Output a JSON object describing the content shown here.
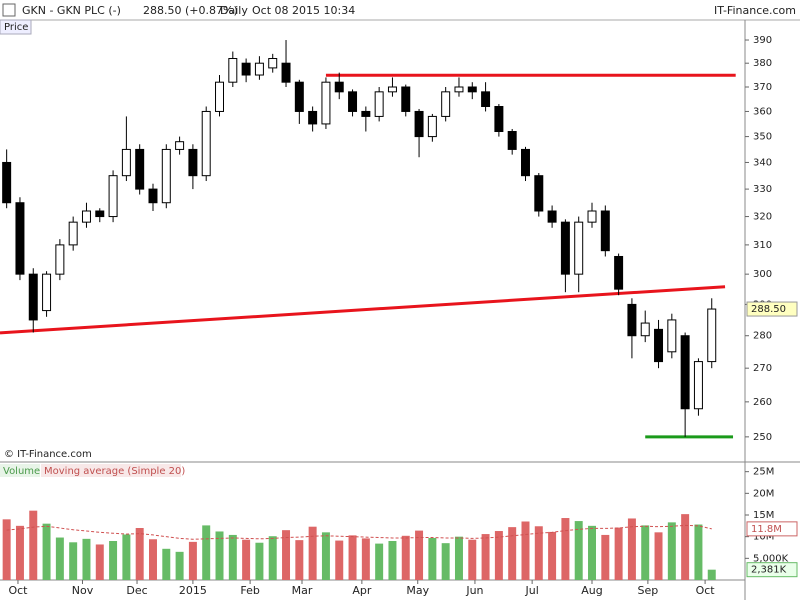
{
  "header": {
    "symbol": "GKN - GKN PLC (-)",
    "quote": "288.50 (+0.87%)",
    "period": "Daily",
    "datetime": "Oct 08 2015 10:34",
    "brand": "IT-Finance.com",
    "copyright": "© IT-Finance.com"
  },
  "chart_data": [
    {
      "type": "candlestick",
      "title": "Price",
      "log_scale": true,
      "up_color": "#ffffff",
      "down_color": "#000000",
      "x": [
        0,
        1,
        2,
        3,
        4,
        5,
        6,
        7,
        8,
        9,
        10,
        11,
        12,
        13,
        14,
        15,
        16,
        17,
        18,
        19,
        20,
        21,
        22,
        23,
        24,
        25,
        26,
        27,
        28,
        29,
        30,
        31,
        32,
        33,
        34,
        35,
        36,
        37,
        38,
        39,
        40,
        41,
        42,
        43,
        44,
        45,
        46,
        47,
        48,
        49,
        50,
        51,
        52,
        53
      ],
      "open": [
        340,
        325,
        300,
        288,
        300,
        310,
        318,
        322,
        320,
        335,
        345,
        330,
        325,
        345,
        345,
        335,
        360,
        372,
        380,
        375,
        378,
        380,
        372,
        360,
        355,
        372,
        368,
        360,
        358,
        368,
        370,
        360,
        350,
        358,
        368,
        370,
        368,
        362,
        352,
        345,
        335,
        322,
        318,
        300,
        318,
        322,
        306,
        290,
        280,
        282,
        275,
        280,
        258,
        272
      ],
      "high": [
        345,
        327,
        302,
        301,
        312,
        320,
        325,
        323,
        337,
        358,
        347,
        332,
        347,
        350,
        347,
        362,
        375,
        385,
        382,
        383,
        384,
        390,
        373,
        362,
        374,
        376,
        369,
        362,
        370,
        374,
        371,
        361,
        359,
        370,
        374,
        372,
        372,
        363,
        353,
        346,
        336,
        324,
        319,
        320,
        325,
        324,
        307,
        292,
        288,
        285,
        287,
        281,
        273,
        292
      ],
      "low": [
        323,
        298,
        281,
        286,
        298,
        308,
        316,
        318,
        318,
        333,
        328,
        322,
        323,
        343,
        330,
        333,
        358,
        370,
        372,
        373,
        376,
        370,
        355,
        352,
        353,
        365,
        358,
        352,
        356,
        366,
        358,
        342,
        348,
        356,
        366,
        365,
        360,
        350,
        343,
        333,
        320,
        316,
        294,
        294,
        316,
        306,
        293,
        273,
        278,
        270,
        273,
        250,
        256,
        270
      ],
      "close": [
        325,
        300,
        285,
        300,
        310,
        318,
        322,
        320,
        335,
        345,
        330,
        325,
        345,
        348,
        335,
        360,
        372,
        382,
        375,
        380,
        382,
        372,
        360,
        355,
        372,
        368,
        360,
        358,
        368,
        370,
        360,
        350,
        358,
        368,
        370,
        368,
        362,
        352,
        345,
        335,
        322,
        318,
        300,
        318,
        322,
        308,
        295,
        280,
        284,
        272,
        285,
        258,
        272,
        288.5
      ],
      "last_label": "288.50",
      "xlim": [
        -0.5,
        55.5
      ],
      "ylim": [
        243.6,
        392.2
      ],
      "yticks": [
        250,
        260,
        270,
        280,
        290,
        300,
        310,
        320,
        330,
        340,
        350,
        360,
        370,
        380,
        390
      ],
      "trend_lines": [
        {
          "color": "#e8141c",
          "x": [
            -0.5,
            54.0
          ],
          "y": [
            280.9,
            295.8
          ]
        },
        {
          "color": "#e8141c",
          "x": [
            24.0,
            54.8
          ],
          "y": [
            374.9,
            374.9
          ]
        },
        {
          "color": "#1a9a1a",
          "x": [
            48.0,
            54.6
          ],
          "y": [
            250,
            250
          ]
        }
      ]
    },
    {
      "type": "bar",
      "series": [
        {
          "name": "Volume",
          "up_color": "#66bb66",
          "down_color": "#dd6666",
          "values": [
            14000000,
            12500000,
            16000000,
            13000000,
            9800000,
            8700000,
            9500000,
            8200000,
            9000000,
            10500000,
            12000000,
            9400000,
            7200000,
            6500000,
            8800000,
            12600000,
            11200000,
            10400000,
            9300000,
            8600000,
            10100000,
            11500000,
            9200000,
            12300000,
            11000000,
            9100000,
            10300000,
            9600000,
            8400000,
            9000000,
            10200000,
            11400000,
            9700000,
            8500000,
            10000000,
            9300000,
            10600000,
            11300000,
            12200000,
            13500000,
            12400000,
            11100000,
            14300000,
            13600000,
            12500000,
            10400000,
            12100000,
            14200000,
            12600000,
            11000000,
            13300000,
            15200000,
            12800000,
            2381000
          ],
          "last_label": "2,381K"
        },
        {
          "name": "Moving average (Simple 20)",
          "color": "#d05050",
          "values": [
            11500000,
            11800000,
            12200000,
            12400000,
            12000000,
            11600000,
            11300000,
            11000000,
            10800000,
            10600000,
            10700000,
            10400000,
            10000000,
            9600000,
            9400000,
            9500000,
            9600000,
            9700000,
            9600000,
            9500000,
            9600000,
            9800000,
            9900000,
            10100000,
            10200000,
            10100000,
            10000000,
            9900000,
            9800000,
            9700000,
            9700000,
            9800000,
            9800000,
            9700000,
            9700000,
            9600000,
            9700000,
            9900000,
            10200000,
            10500000,
            10800000,
            11000000,
            11400000,
            11700000,
            11900000,
            11900000,
            12000000,
            12300000,
            12400000,
            12300000,
            12400000,
            12600000,
            12500000,
            11800000
          ],
          "last_label": "11.8M"
        }
      ],
      "ylim": [
        0,
        27000000
      ],
      "yticks": [
        {
          "value": 5000000,
          "label": "5,000K"
        },
        {
          "value": 10000000,
          "label": "10M"
        },
        {
          "value": 15000000,
          "label": "15M"
        },
        {
          "value": 20000000,
          "label": "20M"
        },
        {
          "value": 25000000,
          "label": "25M"
        }
      ],
      "xticks": [
        {
          "value": 0.85,
          "label": "Oct"
        },
        {
          "value": 5.7,
          "label": "Nov"
        },
        {
          "value": 9.8,
          "label": "Dec"
        },
        {
          "value": 14,
          "label": "2015"
        },
        {
          "value": 18.3,
          "label": "Feb"
        },
        {
          "value": 22.2,
          "label": "Mar"
        },
        {
          "value": 26.7,
          "label": "Apr"
        },
        {
          "value": 30.9,
          "label": "May"
        },
        {
          "value": 35.2,
          "label": "Jun"
        },
        {
          "value": 39.5,
          "label": "Jul"
        },
        {
          "value": 44,
          "label": "Aug"
        },
        {
          "value": 48.2,
          "label": "Sep"
        },
        {
          "value": 52.5,
          "label": "Oct"
        }
      ]
    }
  ]
}
